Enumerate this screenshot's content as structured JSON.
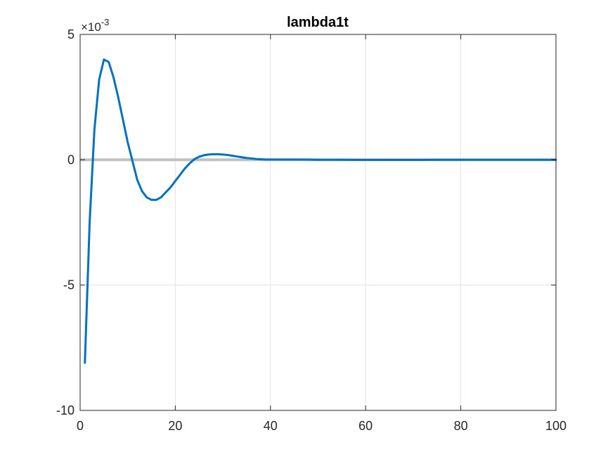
{
  "chart_data": {
    "type": "line",
    "title": "lambda1t",
    "xlabel": "",
    "ylabel": "",
    "xlim": [
      0,
      100
    ],
    "ylim": [
      -0.01,
      0.005
    ],
    "x_ticks": [
      0,
      20,
      40,
      60,
      80,
      100
    ],
    "x_tick_labels": [
      "0",
      "20",
      "40",
      "60",
      "80",
      "100"
    ],
    "y_ticks": [
      -0.01,
      -0.005,
      0,
      0.005
    ],
    "y_tick_labels": [
      "-10",
      "-5",
      "0",
      "5"
    ],
    "y_exponent": {
      "base": "×10",
      "power": "-3"
    },
    "grid": true,
    "legend": "none",
    "colors": {
      "series": "#0072BD",
      "zero_line": "#C0C0C0",
      "grid": "#E3E3E3",
      "axes": "#262626"
    },
    "zero_line": {
      "y": [
        0,
        0
      ]
    },
    "series": [
      {
        "x": [
          1,
          2,
          3,
          4,
          5,
          6,
          7,
          8,
          9,
          10,
          11,
          12,
          13,
          14,
          15,
          16,
          17,
          18,
          19,
          20,
          21,
          22,
          23,
          24,
          25,
          26,
          27,
          28,
          29,
          30,
          31,
          32,
          33,
          34,
          35,
          36,
          37,
          38,
          39,
          40,
          42,
          44,
          46,
          48,
          50,
          55,
          60,
          65,
          70,
          75,
          80,
          85,
          90,
          95,
          100
        ],
        "y": [
          -0.0081,
          -0.0025,
          0.0012,
          0.0032,
          0.004,
          0.0039,
          0.0033,
          0.0025,
          0.0016,
          0.0007,
          -5e-05,
          -0.0008,
          -0.00125,
          -0.0015,
          -0.0016,
          -0.0016,
          -0.0015,
          -0.0013,
          -0.0011,
          -0.00085,
          -0.0006,
          -0.00035,
          -0.00015,
          2e-05,
          0.00012,
          0.00018,
          0.00021,
          0.00022,
          0.00022,
          0.00021,
          0.00019,
          0.00016,
          0.00013,
          0.0001,
          7e-05,
          5e-05,
          3e-05,
          2e-05,
          1e-05,
          1e-05,
          1e-05,
          1e-05,
          1e-05,
          5e-06,
          0.0,
          0.0,
          -5e-06,
          -5e-06,
          -5e-06,
          0.0,
          0.0,
          0.0,
          0.0,
          0.0,
          0.0
        ]
      }
    ]
  }
}
